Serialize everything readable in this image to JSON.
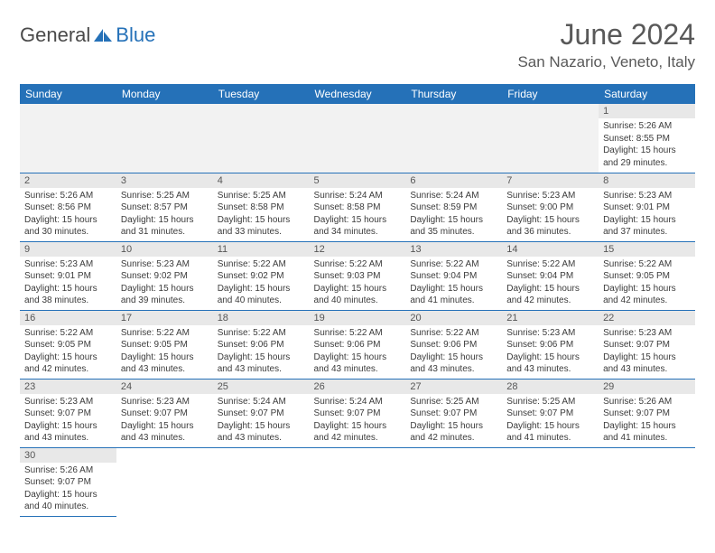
{
  "brand": {
    "text1": "General",
    "text2": "Blue"
  },
  "title": "June 2024",
  "location": "San Nazario, Veneto, Italy",
  "colors": {
    "header_bg": "#2571b8",
    "header_text": "#ffffff",
    "daynum_bg": "#e8e8e8",
    "text": "#595959",
    "border": "#2571b8"
  },
  "weekdays": [
    "Sunday",
    "Monday",
    "Tuesday",
    "Wednesday",
    "Thursday",
    "Friday",
    "Saturday"
  ],
  "weeks": [
    [
      null,
      null,
      null,
      null,
      null,
      null,
      {
        "n": "1",
        "sr": "Sunrise: 5:26 AM",
        "ss": "Sunset: 8:55 PM",
        "d1": "Daylight: 15 hours",
        "d2": "and 29 minutes."
      }
    ],
    [
      {
        "n": "2",
        "sr": "Sunrise: 5:26 AM",
        "ss": "Sunset: 8:56 PM",
        "d1": "Daylight: 15 hours",
        "d2": "and 30 minutes."
      },
      {
        "n": "3",
        "sr": "Sunrise: 5:25 AM",
        "ss": "Sunset: 8:57 PM",
        "d1": "Daylight: 15 hours",
        "d2": "and 31 minutes."
      },
      {
        "n": "4",
        "sr": "Sunrise: 5:25 AM",
        "ss": "Sunset: 8:58 PM",
        "d1": "Daylight: 15 hours",
        "d2": "and 33 minutes."
      },
      {
        "n": "5",
        "sr": "Sunrise: 5:24 AM",
        "ss": "Sunset: 8:58 PM",
        "d1": "Daylight: 15 hours",
        "d2": "and 34 minutes."
      },
      {
        "n": "6",
        "sr": "Sunrise: 5:24 AM",
        "ss": "Sunset: 8:59 PM",
        "d1": "Daylight: 15 hours",
        "d2": "and 35 minutes."
      },
      {
        "n": "7",
        "sr": "Sunrise: 5:23 AM",
        "ss": "Sunset: 9:00 PM",
        "d1": "Daylight: 15 hours",
        "d2": "and 36 minutes."
      },
      {
        "n": "8",
        "sr": "Sunrise: 5:23 AM",
        "ss": "Sunset: 9:01 PM",
        "d1": "Daylight: 15 hours",
        "d2": "and 37 minutes."
      }
    ],
    [
      {
        "n": "9",
        "sr": "Sunrise: 5:23 AM",
        "ss": "Sunset: 9:01 PM",
        "d1": "Daylight: 15 hours",
        "d2": "and 38 minutes."
      },
      {
        "n": "10",
        "sr": "Sunrise: 5:23 AM",
        "ss": "Sunset: 9:02 PM",
        "d1": "Daylight: 15 hours",
        "d2": "and 39 minutes."
      },
      {
        "n": "11",
        "sr": "Sunrise: 5:22 AM",
        "ss": "Sunset: 9:02 PM",
        "d1": "Daylight: 15 hours",
        "d2": "and 40 minutes."
      },
      {
        "n": "12",
        "sr": "Sunrise: 5:22 AM",
        "ss": "Sunset: 9:03 PM",
        "d1": "Daylight: 15 hours",
        "d2": "and 40 minutes."
      },
      {
        "n": "13",
        "sr": "Sunrise: 5:22 AM",
        "ss": "Sunset: 9:04 PM",
        "d1": "Daylight: 15 hours",
        "d2": "and 41 minutes."
      },
      {
        "n": "14",
        "sr": "Sunrise: 5:22 AM",
        "ss": "Sunset: 9:04 PM",
        "d1": "Daylight: 15 hours",
        "d2": "and 42 minutes."
      },
      {
        "n": "15",
        "sr": "Sunrise: 5:22 AM",
        "ss": "Sunset: 9:05 PM",
        "d1": "Daylight: 15 hours",
        "d2": "and 42 minutes."
      }
    ],
    [
      {
        "n": "16",
        "sr": "Sunrise: 5:22 AM",
        "ss": "Sunset: 9:05 PM",
        "d1": "Daylight: 15 hours",
        "d2": "and 42 minutes."
      },
      {
        "n": "17",
        "sr": "Sunrise: 5:22 AM",
        "ss": "Sunset: 9:05 PM",
        "d1": "Daylight: 15 hours",
        "d2": "and 43 minutes."
      },
      {
        "n": "18",
        "sr": "Sunrise: 5:22 AM",
        "ss": "Sunset: 9:06 PM",
        "d1": "Daylight: 15 hours",
        "d2": "and 43 minutes."
      },
      {
        "n": "19",
        "sr": "Sunrise: 5:22 AM",
        "ss": "Sunset: 9:06 PM",
        "d1": "Daylight: 15 hours",
        "d2": "and 43 minutes."
      },
      {
        "n": "20",
        "sr": "Sunrise: 5:22 AM",
        "ss": "Sunset: 9:06 PM",
        "d1": "Daylight: 15 hours",
        "d2": "and 43 minutes."
      },
      {
        "n": "21",
        "sr": "Sunrise: 5:23 AM",
        "ss": "Sunset: 9:06 PM",
        "d1": "Daylight: 15 hours",
        "d2": "and 43 minutes."
      },
      {
        "n": "22",
        "sr": "Sunrise: 5:23 AM",
        "ss": "Sunset: 9:07 PM",
        "d1": "Daylight: 15 hours",
        "d2": "and 43 minutes."
      }
    ],
    [
      {
        "n": "23",
        "sr": "Sunrise: 5:23 AM",
        "ss": "Sunset: 9:07 PM",
        "d1": "Daylight: 15 hours",
        "d2": "and 43 minutes."
      },
      {
        "n": "24",
        "sr": "Sunrise: 5:23 AM",
        "ss": "Sunset: 9:07 PM",
        "d1": "Daylight: 15 hours",
        "d2": "and 43 minutes."
      },
      {
        "n": "25",
        "sr": "Sunrise: 5:24 AM",
        "ss": "Sunset: 9:07 PM",
        "d1": "Daylight: 15 hours",
        "d2": "and 43 minutes."
      },
      {
        "n": "26",
        "sr": "Sunrise: 5:24 AM",
        "ss": "Sunset: 9:07 PM",
        "d1": "Daylight: 15 hours",
        "d2": "and 42 minutes."
      },
      {
        "n": "27",
        "sr": "Sunrise: 5:25 AM",
        "ss": "Sunset: 9:07 PM",
        "d1": "Daylight: 15 hours",
        "d2": "and 42 minutes."
      },
      {
        "n": "28",
        "sr": "Sunrise: 5:25 AM",
        "ss": "Sunset: 9:07 PM",
        "d1": "Daylight: 15 hours",
        "d2": "and 41 minutes."
      },
      {
        "n": "29",
        "sr": "Sunrise: 5:26 AM",
        "ss": "Sunset: 9:07 PM",
        "d1": "Daylight: 15 hours",
        "d2": "and 41 minutes."
      }
    ],
    [
      {
        "n": "30",
        "sr": "Sunrise: 5:26 AM",
        "ss": "Sunset: 9:07 PM",
        "d1": "Daylight: 15 hours",
        "d2": "and 40 minutes."
      },
      null,
      null,
      null,
      null,
      null,
      null
    ]
  ]
}
